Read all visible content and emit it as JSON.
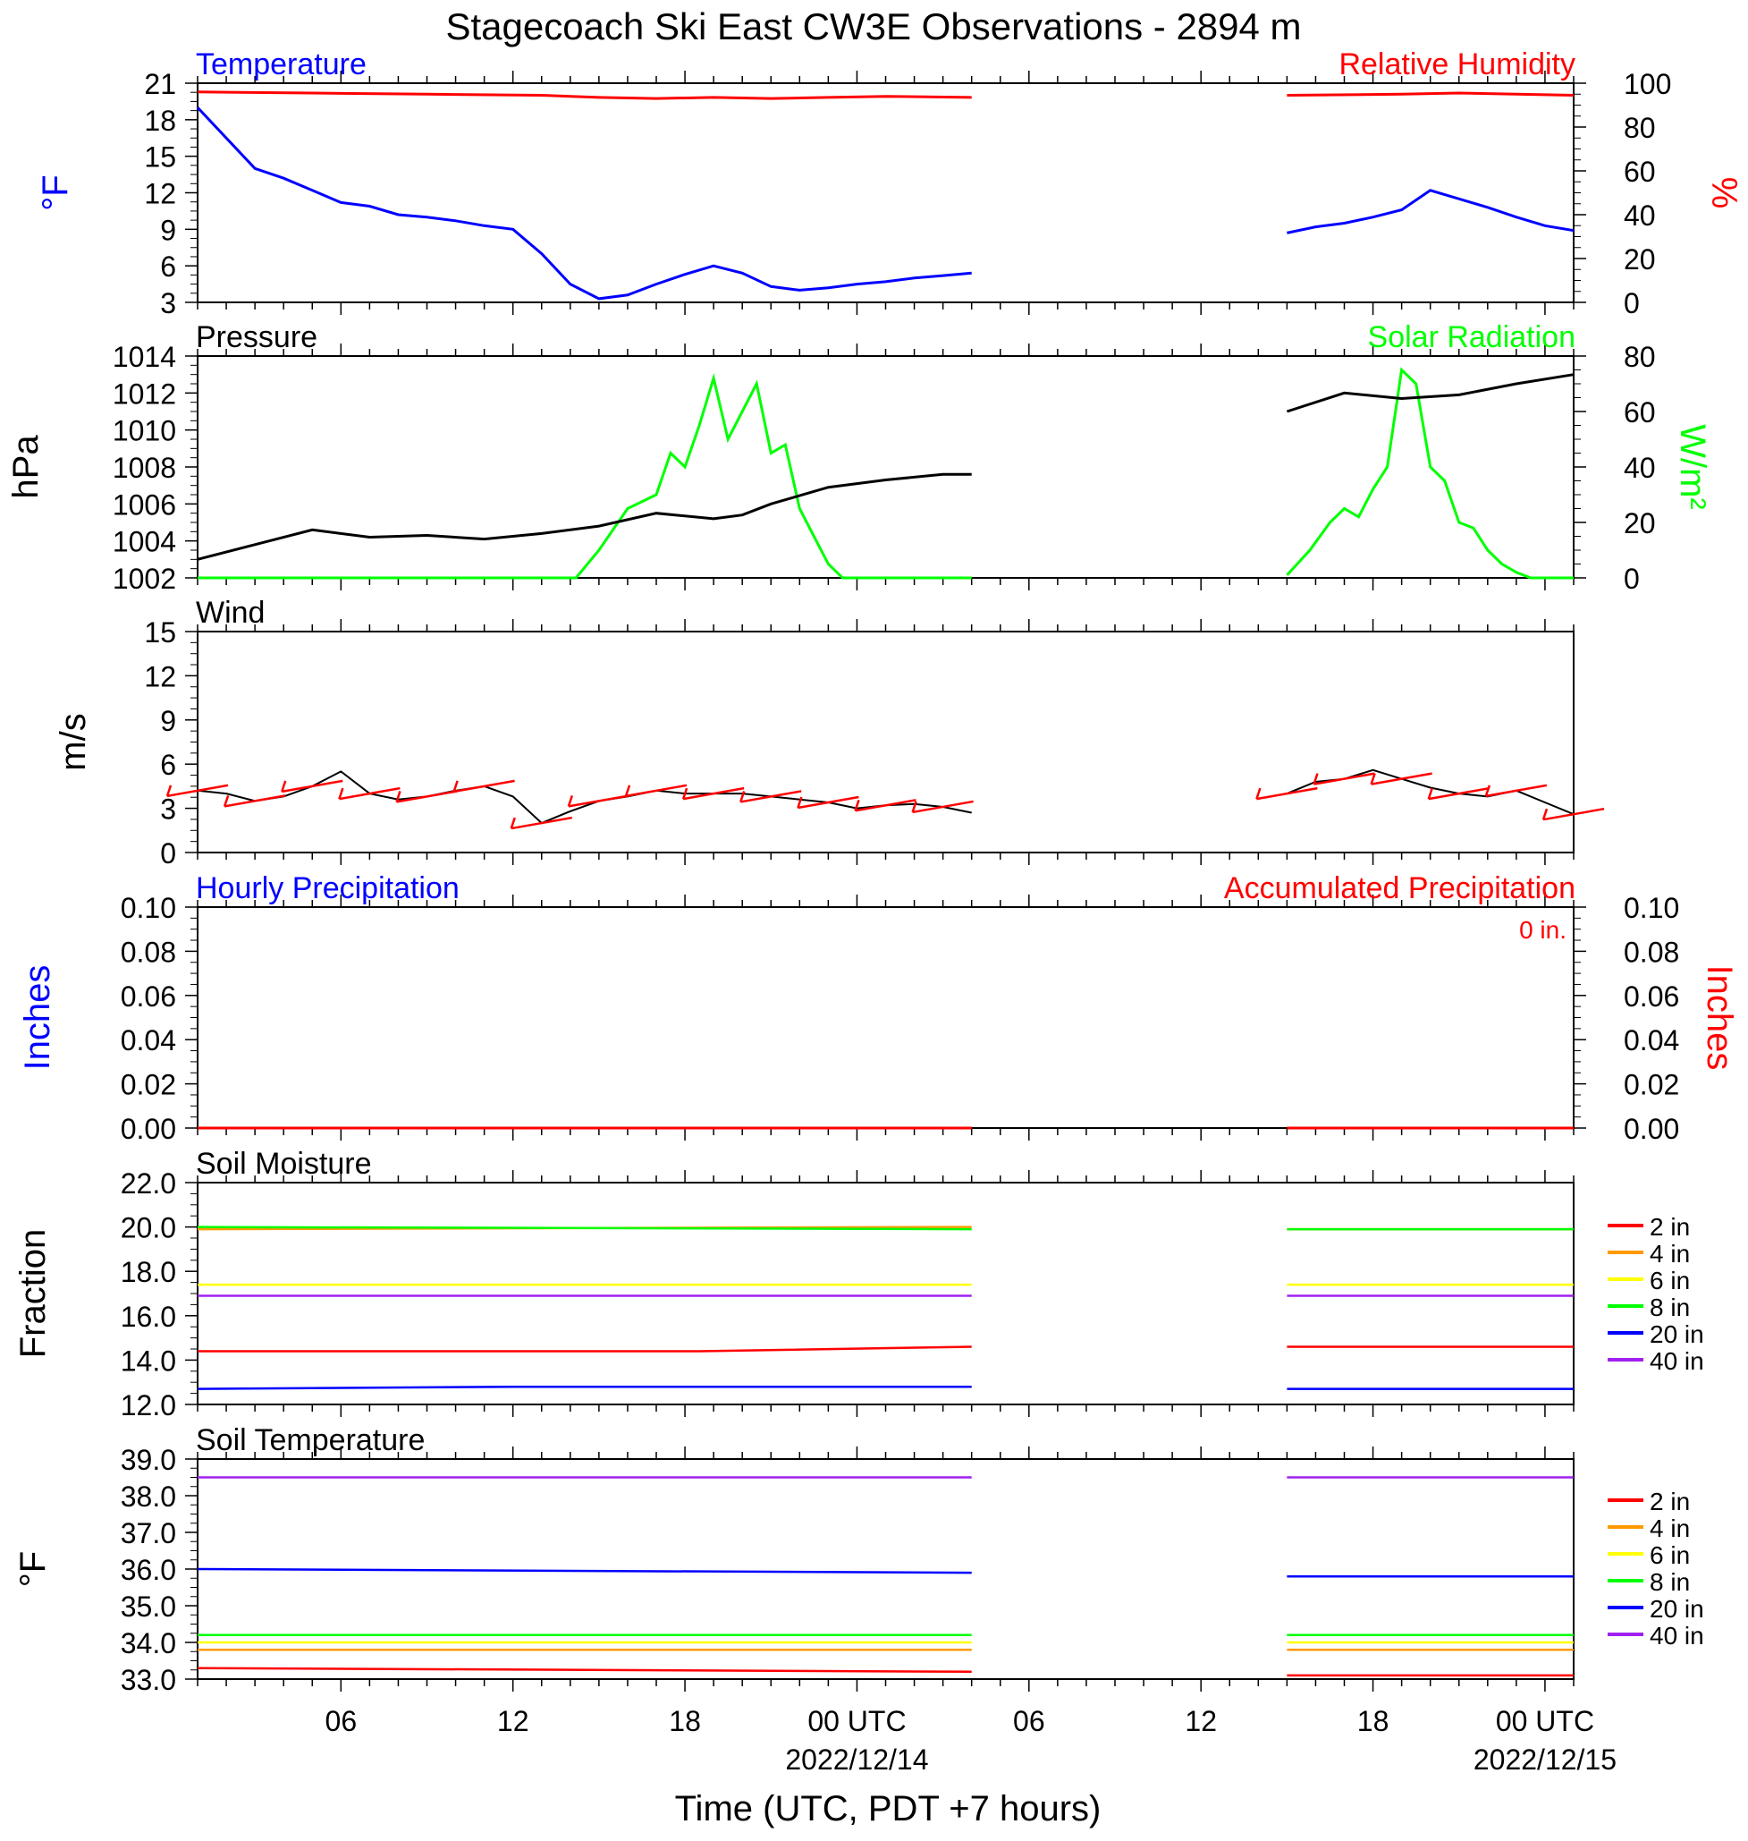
{
  "title": "Stagecoach Ski East CW3E Observations - 2894 m",
  "xaxis": {
    "title": "Time (UTC, PDT +7 hours)",
    "range_hours": [
      0,
      48
    ],
    "major_ticks": [
      {
        "hour": 5,
        "label": "06",
        "date": ""
      },
      {
        "hour": 11,
        "label": "12",
        "date": ""
      },
      {
        "hour": 17,
        "label": "18",
        "date": ""
      },
      {
        "hour": 23,
        "label": "00 UTC",
        "date": "2022/12/14"
      },
      {
        "hour": 29,
        "label": "06",
        "date": ""
      },
      {
        "hour": 35,
        "label": "12",
        "date": ""
      },
      {
        "hour": 41,
        "label": "18",
        "date": ""
      },
      {
        "hour": 47,
        "label": "00 UTC",
        "date": "2022/12/15"
      }
    ]
  },
  "colors": {
    "blue": "#0000ff",
    "red": "#ff0000",
    "green": "#00ff00",
    "black": "#000000",
    "orange": "#ff9900",
    "yellow": "#ffff00",
    "purple": "#a020f0"
  },
  "depth_legend": [
    {
      "label": "2 in",
      "color": "#ff0000"
    },
    {
      "label": "4 in",
      "color": "#ff9900"
    },
    {
      "label": "6 in",
      "color": "#ffff00"
    },
    {
      "label": "8 in",
      "color": "#00ff00"
    },
    {
      "label": "20 in",
      "color": "#0000ff"
    },
    {
      "label": "40 in",
      "color": "#a020f0"
    }
  ],
  "panels": {
    "temp_rh": {
      "left_title": "Temperature",
      "right_title": "Relative Humidity",
      "left_unit": "°F",
      "right_unit": "%",
      "left_ticks": [
        "3",
        "6",
        "9",
        "12",
        "15",
        "18",
        "21"
      ],
      "right_ticks": [
        "0",
        "20",
        "40",
        "60",
        "80",
        "100"
      ]
    },
    "pressure_solar": {
      "left_title": "Pressure",
      "right_title": "Solar Radiation",
      "left_unit": "hPa",
      "right_unit": "W/m²",
      "left_ticks": [
        "1002",
        "1004",
        "1006",
        "1008",
        "1010",
        "1012",
        "1014"
      ],
      "right_ticks": [
        "0",
        "20",
        "40",
        "60",
        "80"
      ]
    },
    "wind": {
      "left_title": "Wind",
      "left_unit": "m/s",
      "left_ticks": [
        "0",
        "3",
        "6",
        "9",
        "12",
        "15"
      ]
    },
    "precip": {
      "left_title": "Hourly Precipitation",
      "right_title": "Accumulated Precipitation",
      "accum_label": "0 in.",
      "left_unit": "Inches",
      "right_unit": "Inches",
      "left_ticks": [
        "0.00",
        "0.02",
        "0.04",
        "0.06",
        "0.08",
        "0.10"
      ],
      "right_ticks": [
        "0.00",
        "0.02",
        "0.04",
        "0.06",
        "0.08",
        "0.10"
      ]
    },
    "soil_moisture": {
      "left_title": "Soil Moisture",
      "left_unit": "Fraction",
      "left_ticks": [
        "12.0",
        "14.0",
        "16.0",
        "18.0",
        "20.0",
        "22.0"
      ]
    },
    "soil_temp": {
      "left_title": "Soil Temperature",
      "left_unit": "°F",
      "left_ticks": [
        "33.0",
        "34.0",
        "35.0",
        "36.0",
        "37.0",
        "38.0",
        "39.0"
      ]
    }
  },
  "chart_data": {
    "type": "line",
    "x_unit": "hours since 2022-12-13 01 UTC",
    "data_gaps_hours": [
      [
        27.0,
        38.0
      ]
    ],
    "temperature_F": {
      "x": [
        0,
        1,
        2,
        3,
        4,
        5,
        6,
        7,
        8,
        9,
        10,
        11,
        12,
        13,
        14,
        15,
        16,
        17,
        18,
        19,
        20,
        21,
        22,
        23,
        24,
        25,
        26,
        27,
        38,
        39,
        40,
        41,
        42,
        43,
        44,
        45,
        46,
        47,
        48
      ],
      "y": [
        19,
        16.5,
        14,
        13.2,
        12.2,
        11.2,
        10.9,
        10.2,
        10.0,
        9.7,
        9.3,
        9.0,
        7.0,
        4.5,
        3.3,
        3.6,
        4.5,
        5.3,
        6.0,
        5.4,
        4.3,
        4.0,
        4.2,
        4.5,
        4.7,
        5.0,
        5.2,
        5.4,
        8.7,
        9.2,
        9.5,
        10.0,
        10.6,
        12.2,
        11.5,
        10.8,
        10.0,
        9.3,
        8.9
      ]
    },
    "relative_humidity_pct": {
      "x": [
        0,
        4,
        8,
        12,
        14,
        16,
        18,
        20,
        22,
        24,
        27,
        38,
        42,
        44,
        46,
        48
      ],
      "y": [
        96,
        95.5,
        95,
        94.5,
        93.5,
        93,
        93.5,
        93,
        93.5,
        94,
        93.5,
        94.5,
        95,
        95.5,
        95,
        94.5
      ]
    },
    "pressure_hPa": {
      "x": [
        0,
        2,
        4,
        6,
        8,
        10,
        12,
        14,
        16,
        18,
        19,
        20,
        22,
        24,
        26,
        27,
        38,
        40,
        42,
        44,
        46,
        48
      ],
      "y": [
        1003.0,
        1003.8,
        1004.6,
        1004.2,
        1004.3,
        1004.1,
        1004.4,
        1004.8,
        1005.5,
        1005.2,
        1005.4,
        1006.0,
        1006.9,
        1007.3,
        1007.6,
        1007.6,
        1011.0,
        1012.0,
        1011.7,
        1011.9,
        1012.5,
        1013.0
      ]
    },
    "solar_radiation_Wm2": {
      "x": [
        0,
        13.2,
        14,
        15,
        16,
        16.5,
        17,
        17.5,
        18,
        18.5,
        19,
        19.5,
        20,
        20.5,
        21,
        21.5,
        22,
        22.5,
        23,
        27,
        38,
        38.8,
        39.5,
        40,
        40.5,
        41,
        41.5,
        42,
        42.5,
        43,
        43.5,
        44,
        44.5,
        45,
        45.5,
        46,
        46.5,
        48
      ],
      "y": [
        0,
        0,
        10,
        25,
        30,
        45,
        40,
        55,
        72,
        50,
        60,
        70,
        45,
        48,
        25,
        15,
        5,
        0,
        0,
        0,
        1,
        10,
        20,
        25,
        22,
        32,
        40,
        75,
        70,
        40,
        35,
        20,
        18,
        10,
        5,
        2,
        0,
        0
      ]
    },
    "wind_speed_ms": {
      "x": [
        0,
        1,
        2,
        3,
        4,
        5,
        6,
        7,
        8,
        9,
        10,
        11,
        12,
        13,
        14,
        15,
        16,
        17,
        18,
        19,
        20,
        21,
        22,
        23,
        24,
        25,
        26,
        27,
        38,
        39,
        40,
        41,
        42,
        43,
        44,
        45,
        46,
        47,
        48
      ],
      "y": [
        4.2,
        4.0,
        3.5,
        3.8,
        4.5,
        5.5,
        4.0,
        3.6,
        3.8,
        4.2,
        4.5,
        3.8,
        2.0,
        2.8,
        3.5,
        3.8,
        4.2,
        4.0,
        4.0,
        4.0,
        3.8,
        3.6,
        3.4,
        3.0,
        3.2,
        3.3,
        3.1,
        2.7,
        4.0,
        4.8,
        5.0,
        5.6,
        5.0,
        4.4,
        4.0,
        3.8,
        4.2,
        3.4,
        2.6
      ]
    },
    "hourly_precipitation_in": {
      "x": [
        0,
        27,
        38,
        48
      ],
      "y": [
        0,
        0,
        0,
        0
      ]
    },
    "accumulated_precipitation_in": {
      "x": [
        0,
        27,
        38,
        48
      ],
      "y": [
        0,
        0,
        0,
        0
      ]
    },
    "soil_moisture_fraction": {
      "series": [
        {
          "name": "2 in",
          "x": [
            0,
            17.5,
            27,
            38,
            48
          ],
          "y": [
            14.4,
            14.4,
            14.6,
            14.6,
            14.6
          ]
        },
        {
          "name": "4 in",
          "x": [
            0,
            27,
            38,
            48
          ],
          "y": [
            19.9,
            20.0,
            19.9,
            19.9
          ]
        },
        {
          "name": "6 in",
          "x": [
            0,
            27,
            38,
            48
          ],
          "y": [
            17.4,
            17.4,
            17.4,
            17.4
          ]
        },
        {
          "name": "8 in",
          "x": [
            0,
            27,
            38,
            48
          ],
          "y": [
            20.0,
            19.9,
            19.9,
            19.9
          ]
        },
        {
          "name": "20 in",
          "x": [
            0,
            11,
            27,
            38,
            48
          ],
          "y": [
            12.7,
            12.8,
            12.8,
            12.7,
            12.7
          ]
        },
        {
          "name": "40 in",
          "x": [
            0,
            27,
            38,
            48
          ],
          "y": [
            16.9,
            16.9,
            16.9,
            16.9
          ]
        }
      ]
    },
    "soil_temperature_F": {
      "series": [
        {
          "name": "2 in",
          "x": [
            0,
            27,
            38,
            48
          ],
          "y": [
            33.3,
            33.2,
            33.1,
            33.1
          ]
        },
        {
          "name": "4 in",
          "x": [
            0,
            27,
            38,
            48
          ],
          "y": [
            33.8,
            33.8,
            33.8,
            33.8
          ]
        },
        {
          "name": "6 in",
          "x": [
            0,
            27,
            38,
            48
          ],
          "y": [
            34.0,
            34.0,
            34.0,
            34.0
          ]
        },
        {
          "name": "8 in",
          "x": [
            0,
            27,
            38,
            48
          ],
          "y": [
            34.2,
            34.2,
            34.2,
            34.2
          ]
        },
        {
          "name": "20 in",
          "x": [
            0,
            27,
            38,
            48
          ],
          "y": [
            36.0,
            35.9,
            35.8,
            35.8
          ]
        },
        {
          "name": "40 in",
          "x": [
            0,
            27,
            38,
            48
          ],
          "y": [
            38.5,
            38.5,
            38.5,
            38.5
          ]
        }
      ]
    }
  }
}
